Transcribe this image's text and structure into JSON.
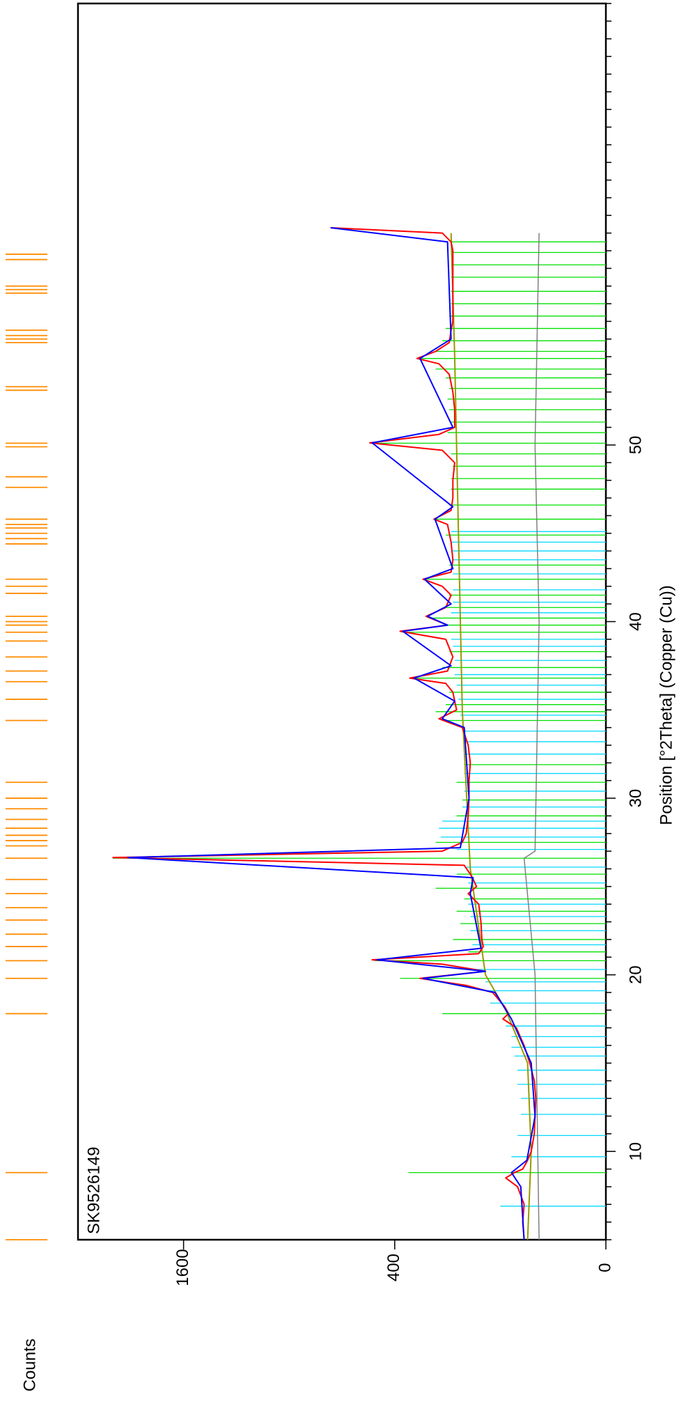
{
  "chart_data": {
    "type": "line",
    "title": "SK9526149",
    "xlabel": "Position [°2Theta] (Copper (Cu))",
    "ylabel": "Counts",
    "orientation": "rotated-90-clockwise",
    "y_scale": "sqrt",
    "xlim": [
      5,
      75
    ],
    "ylim": [
      0,
      2500
    ],
    "x_ticks": [
      10,
      20,
      30,
      40,
      50
    ],
    "y_ticks": [
      0,
      400,
      1600
    ],
    "x_minor_step": 1,
    "grid": false,
    "colors": {
      "observed": "#ff0000",
      "calculated": "#0000ff",
      "background": "#999900",
      "difference": "#808080",
      "phase1_sticks": "#00e000",
      "phase2_sticks": "#00d8ff",
      "reflection_markers": "#ff8c00",
      "axis": "#000000"
    },
    "series": [
      {
        "role": "observed",
        "x": [
          5.0,
          6.0,
          7.0,
          8.0,
          8.5,
          8.8,
          9.0,
          9.5,
          10.0,
          11.0,
          12.0,
          13.0,
          14.0,
          15.0,
          16.0,
          17.0,
          17.5,
          17.8,
          18.2,
          19.0,
          19.4,
          19.8,
          20.2,
          20.6,
          20.85,
          21.2,
          21.6,
          22.0,
          23.0,
          24.0,
          24.6,
          25.0,
          25.6,
          26.2,
          26.64,
          27.0,
          27.5,
          28.0,
          29.0,
          30.0,
          31.0,
          32.0,
          33.0,
          34.0,
          34.5,
          35.0,
          35.5,
          36.0,
          36.5,
          36.8,
          37.2,
          38.0,
          39.0,
          39.45,
          39.8,
          40.3,
          40.8,
          41.5,
          42.0,
          42.4,
          42.8,
          43.5,
          44.5,
          45.5,
          45.8,
          46.3,
          47.0,
          48.0,
          49.0,
          49.7,
          50.12,
          50.6,
          51.0,
          52.0,
          53.0,
          54.0,
          54.6,
          54.9,
          55.3,
          55.8,
          56.5,
          57.0,
          58.0,
          59.0,
          60.0,
          61.0,
          61.5,
          62.0,
          62.3
        ],
        "y": [
          60,
          62,
          60,
          70,
          90,
          75,
          62,
          55,
          50,
          46,
          45,
          44,
          46,
          52,
          60,
          72,
          95,
          85,
          92,
          115,
          175,
          310,
          130,
          240,
          490,
          145,
          135,
          138,
          140,
          145,
          170,
          150,
          162,
          180,
          2180,
          240,
          185,
          175,
          170,
          168,
          168,
          165,
          170,
          185,
          250,
          200,
          205,
          210,
          230,
          345,
          225,
          210,
          230,
          380,
          225,
          290,
          230,
          215,
          240,
          300,
          215,
          210,
          215,
          225,
          265,
          215,
          210,
          210,
          205,
          240,
          500,
          250,
          205,
          205,
          210,
          220,
          250,
          320,
          260,
          220,
          215,
          210,
          210,
          210,
          210,
          210,
          215,
          240,
          680
        ]
      },
      {
        "role": "calculated",
        "x": [
          5.0,
          8.0,
          8.8,
          9.5,
          12.0,
          15.0,
          17.5,
          19.0,
          19.8,
          20.2,
          20.85,
          21.5,
          24.6,
          25.5,
          26.64,
          27.2,
          30.0,
          34.0,
          34.5,
          35.5,
          36.8,
          37.5,
          39.45,
          39.8,
          40.3,
          41.0,
          42.4,
          43.0,
          45.8,
          46.5,
          50.12,
          51.0,
          54.9,
          56.0,
          61.5,
          62.3
        ],
        "y": [
          60,
          65,
          80,
          56,
          45,
          50,
          80,
          110,
          300,
          130,
          470,
          140,
          165,
          158,
          2050,
          190,
          168,
          180,
          240,
          205,
          330,
          215,
          370,
          225,
          285,
          215,
          295,
          210,
          262,
          210,
          490,
          210,
          310,
          215,
          225,
          680
        ]
      },
      {
        "role": "background",
        "x": [
          5.0,
          10.0,
          15.0,
          18.0,
          20.0,
          26.0,
          35.0,
          45.0,
          55.0,
          62.0
        ],
        "y": [
          55,
          50,
          55,
          90,
          130,
          165,
          185,
          195,
          205,
          215
        ]
      },
      {
        "role": "difference",
        "x": [
          5.0,
          20.0,
          26.6,
          27.0,
          40.0,
          50.0,
          62.0
        ],
        "y": [
          40,
          45,
          60,
          45,
          40,
          45,
          40
        ]
      }
    ],
    "phase_sticks": [
      {
        "name": "",
        "color_key": "phase1_sticks",
        "positions": [
          8.8,
          17.8,
          19.8,
          20.8,
          21.3,
          22.0,
          22.9,
          23.6,
          24.3,
          24.9,
          25.7,
          26.6,
          27.5,
          29.0,
          29.9,
          30.9,
          31.9,
          34.4,
          34.9,
          35.3,
          36.0,
          36.8,
          37.4,
          38.3,
          39.4,
          39.8,
          40.2,
          40.8,
          41.5,
          42.4,
          43.2,
          44.9,
          45.8,
          46.6,
          47.5,
          48.1,
          48.8,
          49.5,
          50.1,
          50.7,
          51.3,
          52.0,
          52.6,
          53.2,
          53.8,
          54.3,
          54.9,
          55.3,
          55.9,
          56.6,
          57.3,
          58.0,
          58.7,
          59.5,
          60.2,
          60.9,
          61.5
        ],
        "heights": [
          350,
          240,
          380,
          480,
          170,
          210,
          190,
          200,
          180,
          260,
          200,
          2180,
          260,
          200,
          185,
          200,
          180,
          240,
          260,
          230,
          220,
          330,
          240,
          220,
          370,
          240,
          280,
          230,
          220,
          300,
          220,
          230,
          260,
          220,
          215,
          215,
          210,
          215,
          500,
          225,
          215,
          220,
          225,
          220,
          230,
          260,
          310,
          260,
          240,
          230,
          220,
          215,
          215,
          215,
          215,
          215,
          215
        ]
      },
      {
        "name": "",
        "color_key": "phase2_sticks",
        "positions": [
          6.9,
          9.7,
          10.9,
          12.1,
          13.0,
          13.8,
          14.6,
          15.4,
          15.9,
          16.5,
          17.1,
          18.4,
          19.1,
          19.6,
          20.3,
          21.7,
          22.5,
          23.3,
          24.0,
          25.2,
          26.1,
          27.1,
          27.8,
          28.3,
          28.7,
          29.5,
          30.4,
          31.4,
          32.5,
          33.2,
          33.8,
          34.7,
          35.6,
          36.4,
          37.0,
          37.8,
          38.6,
          39.0,
          40.5,
          41.1,
          41.8,
          42.7,
          43.5,
          44.0,
          44.5,
          45.1
        ],
        "heights": [
          100,
          80,
          70,
          65,
          65,
          70,
          70,
          75,
          80,
          80,
          90,
          120,
          125,
          130,
          150,
          160,
          165,
          165,
          170,
          170,
          175,
          200,
          245,
          250,
          240,
          185,
          180,
          180,
          180,
          180,
          185,
          190,
          195,
          200,
          205,
          205,
          210,
          215,
          215,
          210,
          210,
          210,
          210,
          210,
          215,
          215
        ]
      }
    ],
    "reflection_markers": [
      5.0,
      8.8,
      17.8,
      19.8,
      20.8,
      21.6,
      22.3,
      23.1,
      23.8,
      24.6,
      25.4,
      26.6,
      27.3,
      27.6,
      27.9,
      28.3,
      28.8,
      29.4,
      30.0,
      30.9,
      34.4,
      35.6,
      36.6,
      37.2,
      38.0,
      38.9,
      39.4,
      39.8,
      40.0,
      40.3,
      41.6,
      42.0,
      42.4,
      44.4,
      44.7,
      45.0,
      45.3,
      45.5,
      45.8,
      47.6,
      48.2,
      49.9,
      50.1,
      53.1,
      53.3,
      55.8,
      56.0,
      56.2,
      56.5,
      58.6,
      58.8,
      59.0,
      60.5,
      60.8
    ]
  }
}
